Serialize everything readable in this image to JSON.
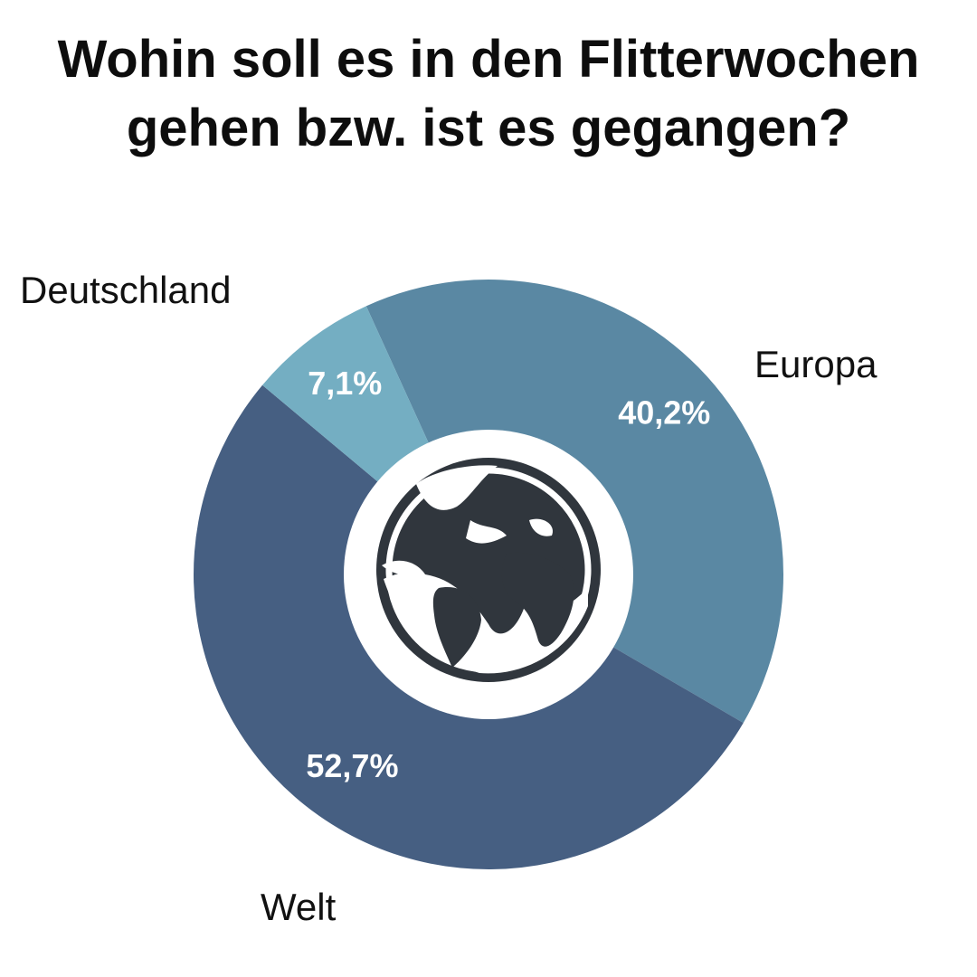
{
  "title": {
    "line1": "Wohin soll es in den Flitterwochen",
    "line2": "gehen bzw. ist es gegangen?"
  },
  "chart_data": {
    "type": "pie",
    "variant": "donut",
    "title": "Wohin soll es in den Flitterwochen gehen bzw. ist es gegangen?",
    "categories": [
      "Europa",
      "Welt",
      "Deutschland"
    ],
    "values": [
      40.2,
      52.7,
      7.1
    ],
    "data_labels": [
      "40,2%",
      "52,7%",
      "7,1%"
    ],
    "colors": [
      "#5a88a3",
      "#465f82",
      "#74aec2"
    ],
    "center_icon": "globe-icon",
    "legend": "none (labels placed next to slices)"
  }
}
